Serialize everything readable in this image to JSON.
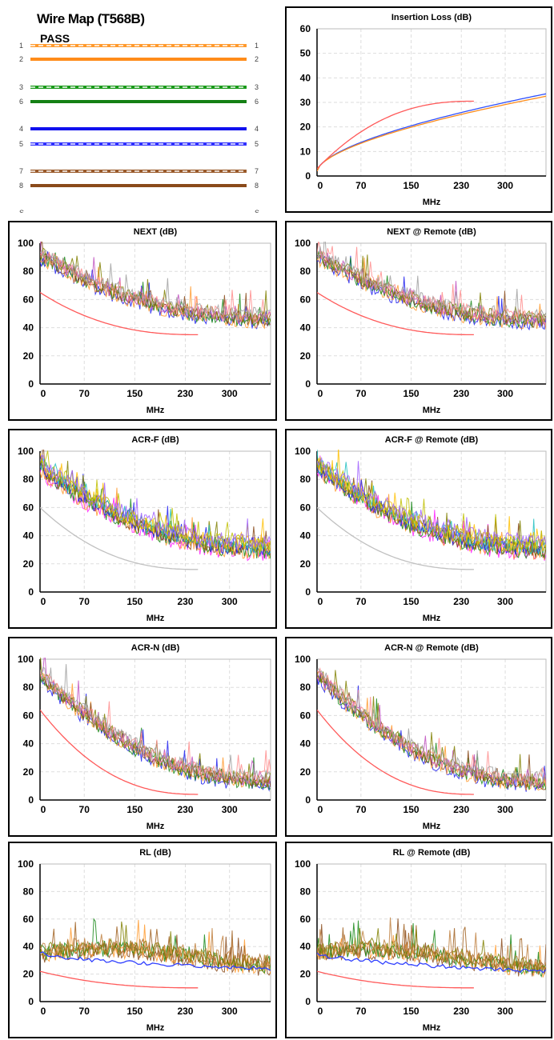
{
  "wire_map": {
    "title": "Wire Map (T568B)",
    "status": "PASS",
    "wires": [
      {
        "left": "1",
        "right": "1",
        "color": "#ff9a2e",
        "style": "dashed"
      },
      {
        "left": "2",
        "right": "2",
        "color": "#ff8c1a",
        "style": "solid"
      },
      {
        "left": "3",
        "right": "3",
        "color": "#1a9a1a",
        "style": "dashed"
      },
      {
        "left": "6",
        "right": "6",
        "color": "#148014",
        "style": "solid"
      },
      {
        "left": "4",
        "right": "4",
        "color": "#1010ee",
        "style": "solid"
      },
      {
        "left": "5",
        "right": "5",
        "color": "#3030ff",
        "style": "dashed"
      },
      {
        "left": "7",
        "right": "7",
        "color": "#9a5a2a",
        "style": "dashed"
      },
      {
        "left": "8",
        "right": "8",
        "color": "#8a4a1a",
        "style": "solid"
      },
      {
        "left": "S",
        "right": "S",
        "color": "",
        "style": "none"
      }
    ]
  },
  "chart_data": [
    {
      "id": "il",
      "type": "line",
      "title": "Insertion Loss (dB)",
      "xlabel": "MHz",
      "xticks": [
        0,
        70,
        150,
        230,
        300
      ],
      "xlim": [
        0,
        365
      ],
      "yticks": [
        0,
        10,
        20,
        30,
        40,
        50,
        60
      ],
      "ylim": [
        0,
        60
      ],
      "grid": true,
      "series": [
        {
          "color": "#3050ff",
          "kind": "pow",
          "x1": 365,
          "y0": 2,
          "y1": 33.5
        },
        {
          "color": "#ff8c1a",
          "kind": "pow",
          "x1": 365,
          "y0": 2,
          "y1": 32.5
        },
        {
          "color": "#ff5a5a",
          "kind": "limit",
          "x1": 250,
          "y0": 3,
          "y1": 30.5
        }
      ]
    },
    {
      "id": "next",
      "type": "line",
      "title": "NEXT (dB)",
      "xlabel": "MHz",
      "xticks": [
        0,
        70,
        150,
        230,
        300
      ],
      "xlim": [
        0,
        365
      ],
      "yticks": [
        0,
        20,
        40,
        60,
        80,
        100
      ],
      "ylim": [
        0,
        100
      ],
      "grid": true,
      "noise": {
        "start": 92,
        "end": 47,
        "amp": 5,
        "spike": 18,
        "colors": [
          "#2020ee",
          "#ff9a2e",
          "#1a8a1a",
          "#8a4a1a",
          "#c050c0",
          "#808000",
          "#ff8c8c",
          "#a0a0a0"
        ]
      },
      "series": [
        {
          "color": "#ff5a5a",
          "kind": "limit",
          "x1": 250,
          "y0": 65,
          "y1": 35
        }
      ]
    },
    {
      "id": "next_remote",
      "type": "line",
      "title": "NEXT @ Remote (dB)",
      "xlabel": "MHz",
      "xticks": [
        0,
        70,
        150,
        230,
        300
      ],
      "xlim": [
        0,
        365
      ],
      "yticks": [
        0,
        20,
        40,
        60,
        80,
        100
      ],
      "ylim": [
        0,
        100
      ],
      "grid": true,
      "noise": {
        "start": 92,
        "end": 46,
        "amp": 5,
        "spike": 18,
        "colors": [
          "#2020ee",
          "#ff9a2e",
          "#1a8a1a",
          "#8a4a1a",
          "#c050c0",
          "#808000",
          "#ff8c8c",
          "#a0a0a0"
        ]
      },
      "series": [
        {
          "color": "#ff5a5a",
          "kind": "limit",
          "x1": 250,
          "y0": 65,
          "y1": 35
        }
      ]
    },
    {
      "id": "acrf",
      "type": "line",
      "title": "ACR-F (dB)",
      "xlabel": "MHz",
      "xticks": [
        0,
        70,
        150,
        230,
        300
      ],
      "xlim": [
        0,
        365
      ],
      "yticks": [
        0,
        20,
        40,
        60,
        80,
        100
      ],
      "ylim": [
        0,
        100
      ],
      "grid": true,
      "noise": {
        "start": 90,
        "end": 32,
        "amp": 6,
        "spike": 18,
        "colors": [
          "#ff20ff",
          "#ff9a2e",
          "#1a8a1a",
          "#8a4a1a",
          "#2020ee",
          "#808000",
          "#20c0c0",
          "#ffc000",
          "#c0c000",
          "#a060ff"
        ]
      },
      "series": [
        {
          "color": "#c0c0c0",
          "kind": "limit",
          "x1": 250,
          "y0": 60,
          "y1": 16
        }
      ]
    },
    {
      "id": "acrf_remote",
      "type": "line",
      "title": "ACR-F @ Remote (dB)",
      "xlabel": "MHz",
      "xticks": [
        0,
        70,
        150,
        230,
        300
      ],
      "xlim": [
        0,
        365
      ],
      "yticks": [
        0,
        20,
        40,
        60,
        80,
        100
      ],
      "ylim": [
        0,
        100
      ],
      "grid": true,
      "noise": {
        "start": 90,
        "end": 32,
        "amp": 6,
        "spike": 18,
        "colors": [
          "#ff20ff",
          "#ff9a2e",
          "#1a8a1a",
          "#8a4a1a",
          "#2020ee",
          "#808000",
          "#20c0c0",
          "#ffc000",
          "#c0c000",
          "#a060ff"
        ]
      },
      "series": [
        {
          "color": "#c0c0c0",
          "kind": "limit",
          "x1": 250,
          "y0": 60,
          "y1": 16
        }
      ]
    },
    {
      "id": "acrn",
      "type": "line",
      "title": "ACR-N (dB)",
      "xlabel": "MHz",
      "xticks": [
        0,
        70,
        150,
        230,
        300
      ],
      "xlim": [
        0,
        365
      ],
      "yticks": [
        0,
        20,
        40,
        60,
        80,
        100
      ],
      "ylim": [
        0,
        100
      ],
      "grid": true,
      "noise": {
        "start": 90,
        "end": 14,
        "amp": 5,
        "spike": 18,
        "colors": [
          "#2020ee",
          "#ff9a2e",
          "#1a8a1a",
          "#8a4a1a",
          "#c050c0",
          "#808000",
          "#ff8c8c",
          "#a0a0a0"
        ]
      },
      "series": [
        {
          "color": "#ff5a5a",
          "kind": "limit",
          "x1": 250,
          "y0": 64,
          "y1": 4
        }
      ]
    },
    {
      "id": "acrn_remote",
      "type": "line",
      "title": "ACR-N @ Remote (dB)",
      "xlabel": "MHz",
      "xticks": [
        0,
        70,
        150,
        230,
        300
      ],
      "xlim": [
        0,
        365
      ],
      "yticks": [
        0,
        20,
        40,
        60,
        80,
        100
      ],
      "ylim": [
        0,
        100
      ],
      "grid": true,
      "noise": {
        "start": 90,
        "end": 13,
        "amp": 5,
        "spike": 18,
        "colors": [
          "#2020ee",
          "#ff9a2e",
          "#1a8a1a",
          "#8a4a1a",
          "#c050c0",
          "#808000",
          "#ff8c8c",
          "#a0a0a0"
        ]
      },
      "series": [
        {
          "color": "#ff5a5a",
          "kind": "limit",
          "x1": 250,
          "y0": 64,
          "y1": 4
        }
      ]
    },
    {
      "id": "rl",
      "type": "line",
      "title": "RL (dB)",
      "xlabel": "MHz",
      "xticks": [
        0,
        70,
        150,
        230,
        300
      ],
      "xlim": [
        0,
        365
      ],
      "yticks": [
        0,
        20,
        40,
        60,
        80,
        100
      ],
      "ylim": [
        0,
        100
      ],
      "grid": true,
      "noise": {
        "start": 36,
        "end": 30,
        "amp": 6,
        "spike": 22,
        "hump": 8,
        "colors": [
          "#8a4a1a",
          "#ff9a2e",
          "#1a8a1a",
          "#a06020",
          "#808000",
          "#c08040"
        ]
      },
      "series": [
        {
          "color": "#3040ff",
          "kind": "rlblue",
          "x1": 365,
          "y0": 36,
          "y1": 24
        },
        {
          "color": "#ff5a5a",
          "kind": "limit",
          "x1": 250,
          "y0": 22,
          "y1": 10
        }
      ]
    },
    {
      "id": "rl_remote",
      "type": "line",
      "title": "RL @ Remote (dB)",
      "xlabel": "MHz",
      "xticks": [
        0,
        70,
        150,
        230,
        300
      ],
      "xlim": [
        0,
        365
      ],
      "yticks": [
        0,
        20,
        40,
        60,
        80,
        100
      ],
      "ylim": [
        0,
        100
      ],
      "grid": true,
      "noise": {
        "start": 36,
        "end": 28,
        "amp": 6,
        "spike": 22,
        "hump": 8,
        "colors": [
          "#8a4a1a",
          "#ff9a2e",
          "#1a8a1a",
          "#a06020",
          "#808000",
          "#c08040"
        ]
      },
      "series": [
        {
          "color": "#3040ff",
          "kind": "rlblue",
          "x1": 365,
          "y0": 36,
          "y1": 22
        },
        {
          "color": "#ff5a5a",
          "kind": "limit",
          "x1": 250,
          "y0": 22,
          "y1": 10
        }
      ]
    }
  ]
}
